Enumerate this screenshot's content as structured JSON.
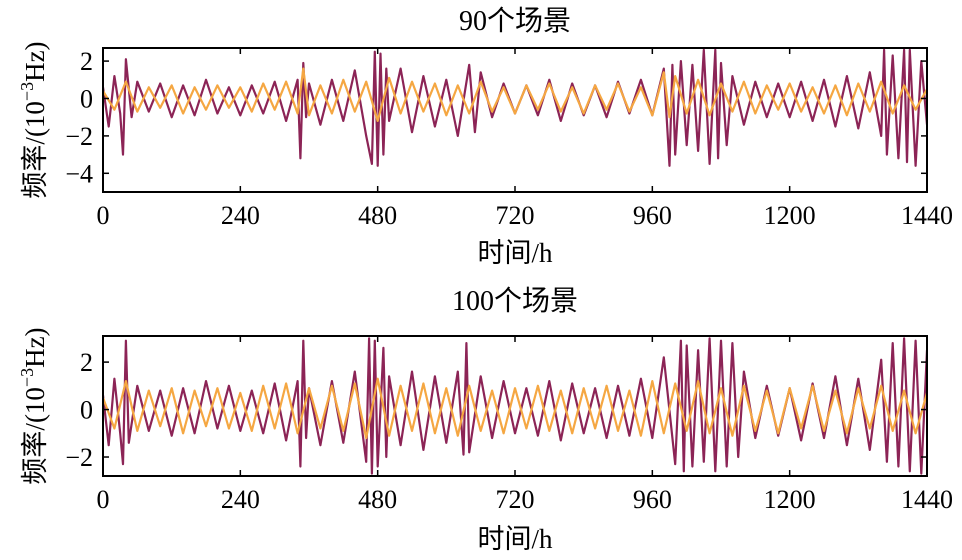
{
  "colors": {
    "series_a": "#8c2456",
    "series_b": "#f5a742"
  },
  "chart_data": [
    {
      "type": "line",
      "title": "90个场景",
      "xlabel": "时间/h",
      "ylabel": "频率/(10",
      "ylabel_exp": "−3",
      "ylabel_tail": "Hz)",
      "xlim": [
        0,
        1440
      ],
      "ylim": [
        -5,
        2.7
      ],
      "xticks": [
        0,
        240,
        480,
        720,
        960,
        1200,
        1440
      ],
      "xtick_labels": [
        "0",
        "240",
        "480",
        "720",
        "960",
        "1200",
        "1440"
      ],
      "yticks": [
        2,
        0,
        -2,
        -4
      ],
      "ytick_labels": [
        "2",
        "0",
        "−2",
        "−4"
      ],
      "series": [
        {
          "color": "#8c2456",
          "x": [
            0,
            10,
            20,
            30,
            35,
            40,
            50,
            60,
            80,
            100,
            120,
            140,
            160,
            180,
            200,
            220,
            240,
            260,
            280,
            300,
            320,
            340,
            345,
            350,
            355,
            360,
            380,
            400,
            420,
            440,
            460,
            470,
            475,
            480,
            485,
            490,
            495,
            500,
            520,
            540,
            560,
            580,
            600,
            620,
            640,
            650,
            660,
            680,
            700,
            720,
            740,
            760,
            780,
            800,
            820,
            840,
            860,
            880,
            900,
            920,
            940,
            960,
            980,
            990,
            995,
            1000,
            1010,
            1020,
            1030,
            1040,
            1050,
            1060,
            1070,
            1075,
            1080,
            1090,
            1100,
            1120,
            1140,
            1160,
            1180,
            1200,
            1220,
            1240,
            1260,
            1280,
            1300,
            1320,
            1340,
            1360,
            1365,
            1370,
            1380,
            1390,
            1400,
            1405,
            1410,
            1420,
            1430,
            1440
          ],
          "y": [
            0.6,
            -1.5,
            1.2,
            -0.8,
            -3.0,
            2.1,
            -1.0,
            0.9,
            -0.7,
            0.8,
            -1.0,
            0.7,
            -0.9,
            1.0,
            -0.8,
            0.6,
            -0.9,
            0.7,
            -0.8,
            0.9,
            -1.2,
            1.0,
            -3.2,
            1.9,
            -1.0,
            0.8,
            -1.4,
            1.0,
            -1.2,
            1.5,
            -2.0,
            -3.5,
            2.5,
            -3.6,
            2.4,
            -3.0,
            1.6,
            -1.2,
            1.6,
            -1.8,
            1.2,
            -1.5,
            1.0,
            -2.0,
            1.8,
            -1.8,
            1.4,
            -1.0,
            0.8,
            -0.8,
            0.7,
            -0.9,
            1.0,
            -1.2,
            0.8,
            -0.9,
            0.7,
            -1.0,
            0.9,
            -0.8,
            1.0,
            -0.9,
            1.6,
            -3.6,
            1.8,
            -3.0,
            2.0,
            -2.5,
            1.8,
            -2.8,
            2.6,
            -3.5,
            2.6,
            -3.2,
            1.9,
            -2.5,
            1.2,
            -1.4,
            0.9,
            -1.0,
            0.8,
            -1.0,
            0.9,
            -1.2,
            1.0,
            -1.5,
            1.2,
            -1.6,
            1.4,
            -2.0,
            2.6,
            -3.0,
            2.3,
            -3.2,
            2.6,
            -3.4,
            2.6,
            -3.6,
            2.0,
            -1.4
          ]
        },
        {
          "color": "#f5a742",
          "x": [
            0,
            20,
            40,
            60,
            80,
            100,
            120,
            140,
            160,
            180,
            200,
            220,
            240,
            260,
            280,
            300,
            320,
            340,
            350,
            360,
            380,
            400,
            420,
            440,
            460,
            480,
            500,
            520,
            540,
            560,
            580,
            600,
            620,
            640,
            660,
            680,
            700,
            720,
            740,
            760,
            780,
            800,
            820,
            840,
            860,
            880,
            900,
            920,
            940,
            960,
            980,
            990,
            1000,
            1020,
            1040,
            1060,
            1080,
            1100,
            1120,
            1140,
            1160,
            1180,
            1200,
            1220,
            1240,
            1260,
            1280,
            1300,
            1320,
            1340,
            1360,
            1380,
            1400,
            1420,
            1440
          ],
          "y": [
            0.4,
            -0.6,
            0.9,
            -0.7,
            0.6,
            -0.5,
            0.7,
            -0.8,
            0.6,
            -0.6,
            0.7,
            -0.5,
            0.6,
            -0.7,
            0.8,
            -0.6,
            0.9,
            -0.8,
            1.6,
            -0.9,
            0.7,
            -0.8,
            1.0,
            -0.7,
            0.9,
            -1.2,
            1.1,
            -0.8,
            0.9,
            -0.7,
            0.8,
            -0.9,
            0.7,
            -0.8,
            0.9,
            -0.7,
            0.6,
            -0.8,
            0.7,
            -0.6,
            0.8,
            -0.7,
            0.6,
            -0.8,
            0.7,
            -0.6,
            0.8,
            -0.7,
            0.6,
            -0.9,
            1.4,
            -1.0,
            1.2,
            -0.8,
            1.0,
            -0.9,
            0.8,
            -0.7,
            0.9,
            -0.8,
            0.7,
            -0.6,
            0.8,
            -0.7,
            0.6,
            -0.8,
            0.7,
            -0.9,
            0.8,
            -0.7,
            0.9,
            -0.8,
            0.7,
            -0.6,
            0.5
          ]
        }
      ]
    },
    {
      "type": "line",
      "title": "100个场景",
      "xlabel": "时间/h",
      "ylabel": "频率/(10",
      "ylabel_exp": "−3",
      "ylabel_tail": "Hz)",
      "xlim": [
        0,
        1440
      ],
      "ylim": [
        -2.8,
        3.1
      ],
      "xticks": [
        0,
        240,
        480,
        720,
        960,
        1200,
        1440
      ],
      "xtick_labels": [
        "0",
        "240",
        "480",
        "720",
        "960",
        "1200",
        "1440"
      ],
      "yticks": [
        2,
        0,
        -2
      ],
      "ytick_labels": [
        "2",
        "0",
        "−2"
      ],
      "series": [
        {
          "color": "#8c2456",
          "x": [
            0,
            10,
            20,
            30,
            35,
            40,
            45,
            60,
            80,
            100,
            120,
            140,
            160,
            180,
            200,
            220,
            240,
            260,
            280,
            300,
            320,
            340,
            345,
            350,
            355,
            360,
            380,
            400,
            420,
            440,
            460,
            465,
            470,
            475,
            480,
            490,
            495,
            500,
            520,
            540,
            560,
            580,
            600,
            620,
            630,
            635,
            640,
            660,
            680,
            700,
            720,
            740,
            760,
            780,
            800,
            820,
            840,
            860,
            880,
            900,
            920,
            940,
            960,
            980,
            1000,
            1010,
            1015,
            1020,
            1030,
            1040,
            1050,
            1060,
            1070,
            1080,
            1090,
            1100,
            1110,
            1120,
            1140,
            1160,
            1180,
            1200,
            1220,
            1240,
            1260,
            1280,
            1300,
            1320,
            1340,
            1360,
            1370,
            1380,
            1390,
            1400,
            1410,
            1420,
            1430,
            1440
          ],
          "y": [
            0.6,
            -1.5,
            1.3,
            -1.0,
            -2.3,
            2.9,
            -1.4,
            1.0,
            -0.9,
            0.8,
            -1.1,
            0.9,
            -1.0,
            1.2,
            -0.8,
            1.0,
            -0.9,
            0.8,
            -1.0,
            1.1,
            -1.3,
            1.2,
            -2.4,
            2.9,
            -1.2,
            0.9,
            -1.5,
            1.2,
            -1.4,
            1.6,
            -2.2,
            3.0,
            -2.7,
            2.9,
            -2.4,
            2.6,
            -2.0,
            1.4,
            -1.5,
            1.6,
            -1.7,
            1.4,
            -1.4,
            1.6,
            -1.9,
            2.8,
            -1.8,
            1.4,
            -1.2,
            1.2,
            -1.0,
            0.9,
            -1.1,
            1.2,
            -1.3,
            1.1,
            -1.0,
            0.9,
            -1.2,
            1.0,
            -1.1,
            1.3,
            -1.2,
            2.2,
            -2.3,
            2.9,
            -2.6,
            2.7,
            -2.4,
            2.5,
            -2.2,
            3.0,
            -2.6,
            2.9,
            -2.4,
            2.8,
            -2.0,
            1.6,
            -1.2,
            1.0,
            -1.1,
            0.9,
            -1.3,
            1.1,
            -1.2,
            1.4,
            -1.5,
            1.3,
            -1.7,
            2.1,
            -2.2,
            2.8,
            -2.4,
            3.0,
            -2.6,
            2.9,
            -2.7,
            2.5
          ]
        },
        {
          "color": "#f5a742",
          "x": [
            0,
            20,
            40,
            60,
            80,
            100,
            120,
            140,
            160,
            180,
            200,
            220,
            240,
            260,
            280,
            300,
            320,
            340,
            360,
            380,
            400,
            420,
            440,
            460,
            480,
            500,
            520,
            540,
            560,
            580,
            600,
            620,
            640,
            660,
            680,
            700,
            720,
            740,
            760,
            780,
            800,
            820,
            840,
            860,
            880,
            900,
            920,
            940,
            960,
            980,
            1000,
            1020,
            1040,
            1060,
            1080,
            1100,
            1120,
            1140,
            1160,
            1180,
            1200,
            1220,
            1240,
            1260,
            1280,
            1300,
            1320,
            1340,
            1360,
            1380,
            1400,
            1420,
            1440
          ],
          "y": [
            0.5,
            -0.8,
            1.2,
            -0.9,
            0.8,
            -0.7,
            0.9,
            -1.0,
            0.8,
            -0.7,
            0.9,
            -0.8,
            0.7,
            -0.9,
            1.0,
            -0.8,
            1.1,
            -1.0,
            0.9,
            -0.8,
            1.0,
            -0.9,
            1.1,
            -1.2,
            1.3,
            -1.1,
            1.0,
            -0.9,
            1.1,
            -1.0,
            0.9,
            -1.1,
            1.0,
            -0.9,
            0.8,
            -1.0,
            0.9,
            -0.8,
            1.0,
            -0.9,
            0.8,
            -1.0,
            0.9,
            -0.8,
            1.0,
            -0.9,
            0.8,
            -1.1,
            1.2,
            -1.0,
            1.1,
            -0.9,
            1.2,
            -1.0,
            0.9,
            -1.1,
            1.0,
            -0.9,
            0.8,
            -1.0,
            0.9,
            -0.8,
            1.0,
            -0.9,
            0.8,
            -1.0,
            0.9,
            -0.8,
            1.0,
            -0.9,
            0.8,
            -1.0,
            0.7
          ]
        }
      ]
    }
  ]
}
